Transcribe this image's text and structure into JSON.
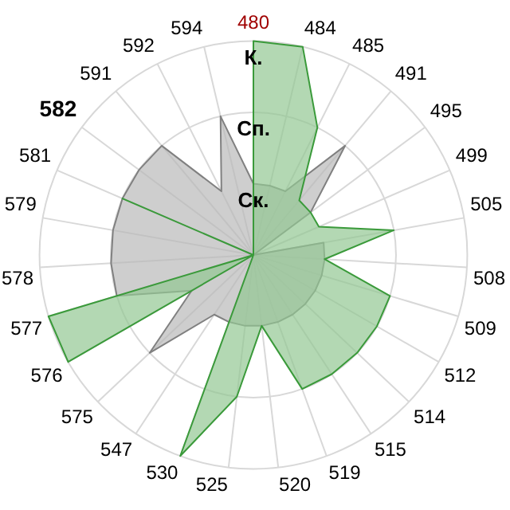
{
  "chart_data": {
    "type": "radar",
    "categories": [
      "480",
      "484",
      "485",
      "491",
      "495",
      "499",
      "505",
      "508",
      "509",
      "512",
      "514",
      "515",
      "519",
      "520",
      "525",
      "530",
      "547",
      "575",
      "576",
      "577",
      "578",
      "579",
      "581",
      "582",
      "591",
      "592",
      "594"
    ],
    "series": [
      {
        "color": "#3a9a3a",
        "values": [
          3,
          3,
          2,
          1,
          1,
          1,
          2,
          1,
          2,
          2,
          2,
          2,
          2,
          1,
          2,
          3,
          0,
          0,
          3,
          3,
          0,
          0,
          2,
          0,
          0,
          0,
          0
        ]
      },
      {
        "color": "#808080",
        "values": [
          1,
          1,
          1,
          2,
          1,
          0,
          1,
          1,
          1,
          1,
          1,
          1,
          1,
          1,
          1,
          1,
          1,
          2,
          1,
          2,
          2,
          2,
          2,
          2,
          2,
          1,
          2
        ]
      }
    ],
    "ylim": [
      0,
      3
    ],
    "yticks": [
      {
        "value": 1,
        "label": "Ск."
      },
      {
        "value": 2,
        "label": "Сп."
      },
      {
        "value": 3,
        "label": "К."
      }
    ],
    "grid": true,
    "legend": false,
    "marker": "none"
  }
}
